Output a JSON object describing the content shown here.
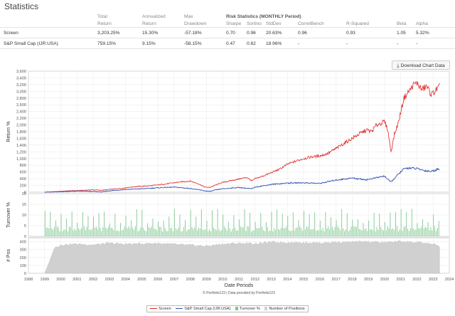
{
  "stats": {
    "title": "Statistics",
    "header_row1": [
      "Total",
      "Annualized",
      "Max",
      "Risk Statistics (MONTHLY Period)"
    ],
    "header_row2": [
      "Return",
      "Return",
      "Drawdown",
      "Sharpe",
      "Sortino",
      "StdDev",
      "CorrelBench",
      "R-Squared",
      "Beta",
      "Alpha"
    ],
    "rows": [
      {
        "name": "Screen",
        "total_return": "3,203.25%",
        "annualized": "15.30%",
        "max_drawdown": "-57.18%",
        "sharpe": "0.70",
        "sortino": "0.96",
        "stddev": "20.63%",
        "correlbench": "0.96",
        "r_squared": "0.93",
        "beta": "1.05",
        "alpha": "5.32%"
      },
      {
        "name": "S&P Small Cap (IJR:USA)",
        "total_return": "759.15%",
        "annualized": "9.15%",
        "max_drawdown": "-58.15%",
        "sharpe": "0.47",
        "sortino": "0.62",
        "stddev": "18.96%",
        "correlbench": "-",
        "r_squared": "-",
        "beta": "-",
        "alpha": "-"
      }
    ]
  },
  "download_button": {
    "label": "Download Chart Data",
    "icon": "download-icon"
  },
  "chart_data": {
    "type": "line",
    "xlabel": "Date Periods",
    "x_ticks": [
      "1998",
      "1999",
      "2000",
      "2001",
      "2002",
      "2003",
      "2004",
      "2005",
      "2006",
      "2007",
      "2008",
      "2009",
      "2010",
      "2011",
      "2012",
      "2013",
      "2014",
      "2015",
      "2016",
      "2017",
      "2018",
      "2019",
      "2020",
      "2021",
      "2022",
      "2023",
      "2024"
    ],
    "panels": [
      {
        "ylabel": "Return %",
        "ylim": [
          0,
          3600
        ],
        "y_ticks": [
          "3,600",
          "3,400",
          "3,200",
          "3,000",
          "2,800",
          "2,600",
          "2,400",
          "2,200",
          "2,000",
          "1,800",
          "1,600",
          "1,400",
          "1,200",
          "1,000",
          "800",
          "600",
          "400",
          "200",
          "0"
        ],
        "series": [
          {
            "name": "Screen",
            "color": "#e32222",
            "x": [
              1999.0,
              1999.5,
              2000.0,
              2000.5,
              2001.0,
              2001.5,
              2002.0,
              2002.5,
              2003.0,
              2003.5,
              2004.0,
              2004.5,
              2005.0,
              2005.5,
              2006.0,
              2006.5,
              2007.0,
              2007.5,
              2008.0,
              2008.5,
              2008.9,
              2009.2,
              2009.5,
              2010.0,
              2010.5,
              2011.0,
              2011.5,
              2011.8,
              2012.0,
              2012.5,
              2013.0,
              2013.5,
              2014.0,
              2014.5,
              2015.0,
              2015.5,
              2016.0,
              2016.5,
              2017.0,
              2017.5,
              2018.0,
              2018.5,
              2018.9,
              2019.2,
              2019.5,
              2020.0,
              2020.2,
              2020.4,
              2020.6,
              2020.9,
              2021.0,
              2021.2,
              2021.5,
              2021.8,
              2022.0,
              2022.3,
              2022.6,
              2022.9,
              2023.1,
              2023.4
            ],
            "values": [
              0,
              5,
              25,
              40,
              45,
              60,
              70,
              55,
              80,
              100,
              130,
              160,
              175,
              190,
              215,
              245,
              280,
              310,
              330,
              250,
              150,
              140,
              200,
              290,
              340,
              390,
              440,
              330,
              400,
              480,
              580,
              680,
              830,
              920,
              1000,
              1050,
              1080,
              1150,
              1300,
              1450,
              1600,
              1750,
              1850,
              1800,
              2000,
              2100,
              1850,
              1200,
              1700,
              2150,
              2400,
              2800,
              3000,
              3200,
              3250,
              3050,
              3150,
              2900,
              3000,
              3150
            ]
          },
          {
            "name": "S&P Small Cap (IJR:USA)",
            "color": "#2f4fb0",
            "x": [
              1999.0,
              2000.0,
              2001.0,
              2002.0,
              2002.5,
              2003.0,
              2004.0,
              2005.0,
              2006.0,
              2007.0,
              2008.0,
              2008.9,
              2009.2,
              2009.5,
              2010.0,
              2011.0,
              2011.8,
              2012.0,
              2013.0,
              2014.0,
              2015.0,
              2016.0,
              2017.0,
              2018.0,
              2018.9,
              2019.5,
              2020.0,
              2020.2,
              2020.4,
              2020.9,
              2021.2,
              2021.5,
              2022.0,
              2022.5,
              2022.9,
              2023.4
            ],
            "values": [
              0,
              15,
              30,
              20,
              5,
              40,
              80,
              100,
              130,
              150,
              110,
              40,
              20,
              60,
              100,
              140,
              100,
              150,
              230,
              270,
              280,
              260,
              360,
              420,
              370,
              430,
              480,
              380,
              300,
              560,
              690,
              720,
              700,
              640,
              620,
              700
            ]
          }
        ]
      },
      {
        "ylabel": "Turnover %",
        "ylim": [
          0,
          20
        ],
        "y_ticks": [
          "20",
          "15",
          "10",
          "5",
          "0"
        ],
        "series": [
          {
            "name": "Turnover %",
            "color": "#80c890"
          }
        ]
      },
      {
        "ylabel": "# Pos",
        "ylim": [
          0,
          450
        ],
        "y_ticks": [
          "400",
          "300",
          "200",
          "100",
          "0"
        ],
        "series": [
          {
            "name": "Number of Positions",
            "color": "#d0d0d0",
            "x": [
              1999.0,
              1999.3,
              1999.6,
              2000.0,
              2001.0,
              2002.0,
              2003.0,
              2004.0,
              2005.0,
              2006.0,
              2007.0,
              2008.0,
              2009.0,
              2010.0,
              2011.0,
              2012.0,
              2013.0,
              2014.0,
              2015.0,
              2016.0,
              2017.0,
              2018.0,
              2019.0,
              2020.0,
              2021.0,
              2022.0,
              2023.0,
              2023.4
            ],
            "values": [
              0,
              150,
              320,
              360,
              370,
              360,
              380,
              370,
              375,
              380,
              365,
              355,
              345,
              370,
              380,
              375,
              395,
              390,
              390,
              385,
              395,
              395,
              400,
              390,
              405,
              390,
              370,
              340
            ]
          }
        ]
      }
    ],
    "credit_line1": "© Portfolio123",
    "credit_line2": "Data provided by Portfolio123",
    "legend": [
      {
        "name": "Screen",
        "color": "#e32222",
        "kind": "line"
      },
      {
        "name": "S&P Small Cap (IJR:USA)",
        "color": "#2f4fb0",
        "kind": "line"
      },
      {
        "name": "Turnover %",
        "color": "#80c890",
        "kind": "bar"
      },
      {
        "name": "Number of Positions",
        "color": "#d0d0d0",
        "kind": "bar"
      }
    ]
  }
}
